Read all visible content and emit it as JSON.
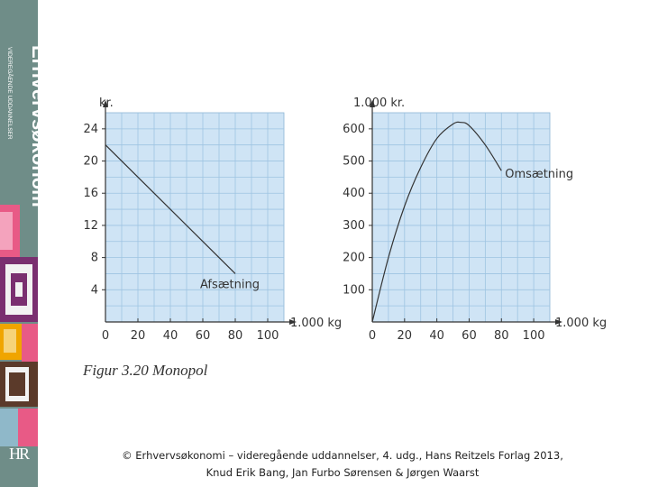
{
  "sidebar": {
    "brand_title": "Erhvervsøkonomi",
    "brand_subtitle": "VIDEREGÅENDE UDDANNELSER",
    "publisher_logo": "HR"
  },
  "figure_caption": "Figur 3.20 Monopol",
  "footer": {
    "line1": "© Erhvervsøkonomi – videregående uddannelser, 4. udg., Hans Reitzels Forlag 2013,",
    "line2": "Knud Erik Bang, Jan Furbo Sørensen & Jørgen Waarst"
  },
  "colors": {
    "sidebar": "#6f8d88",
    "plot_bg": "#cfe4f5",
    "grid": "#9ec4e2",
    "axis": "#333333",
    "curve": "#333333"
  },
  "chart_data": [
    {
      "type": "line",
      "ylabel": "kr.",
      "xlabel": "1.000 kg",
      "x_ticks": [
        "0",
        "20",
        "40",
        "60",
        "80",
        "100"
      ],
      "y_ticks": [
        "4",
        "8",
        "12",
        "16",
        "20",
        "24"
      ],
      "xlim": [
        0,
        110
      ],
      "ylim": [
        0,
        26
      ],
      "grid": true,
      "series": [
        {
          "name": "Afsætning",
          "x": [
            0,
            80
          ],
          "y": [
            22,
            6
          ]
        }
      ]
    },
    {
      "type": "line",
      "ylabel": "1.000 kr.",
      "xlabel": "1.000 kg",
      "x_ticks": [
        "0",
        "20",
        "40",
        "60",
        "80",
        "100"
      ],
      "y_ticks": [
        "100",
        "200",
        "300",
        "400",
        "500",
        "600"
      ],
      "xlim": [
        0,
        110
      ],
      "ylim": [
        0,
        650
      ],
      "grid": true,
      "series": [
        {
          "name": "Omsætning",
          "x": [
            0,
            10,
            20,
            30,
            40,
            50,
            55,
            60,
            70,
            80
          ],
          "y": [
            0,
            200,
            360,
            480,
            570,
            615,
            620,
            610,
            550,
            470
          ]
        }
      ]
    }
  ]
}
